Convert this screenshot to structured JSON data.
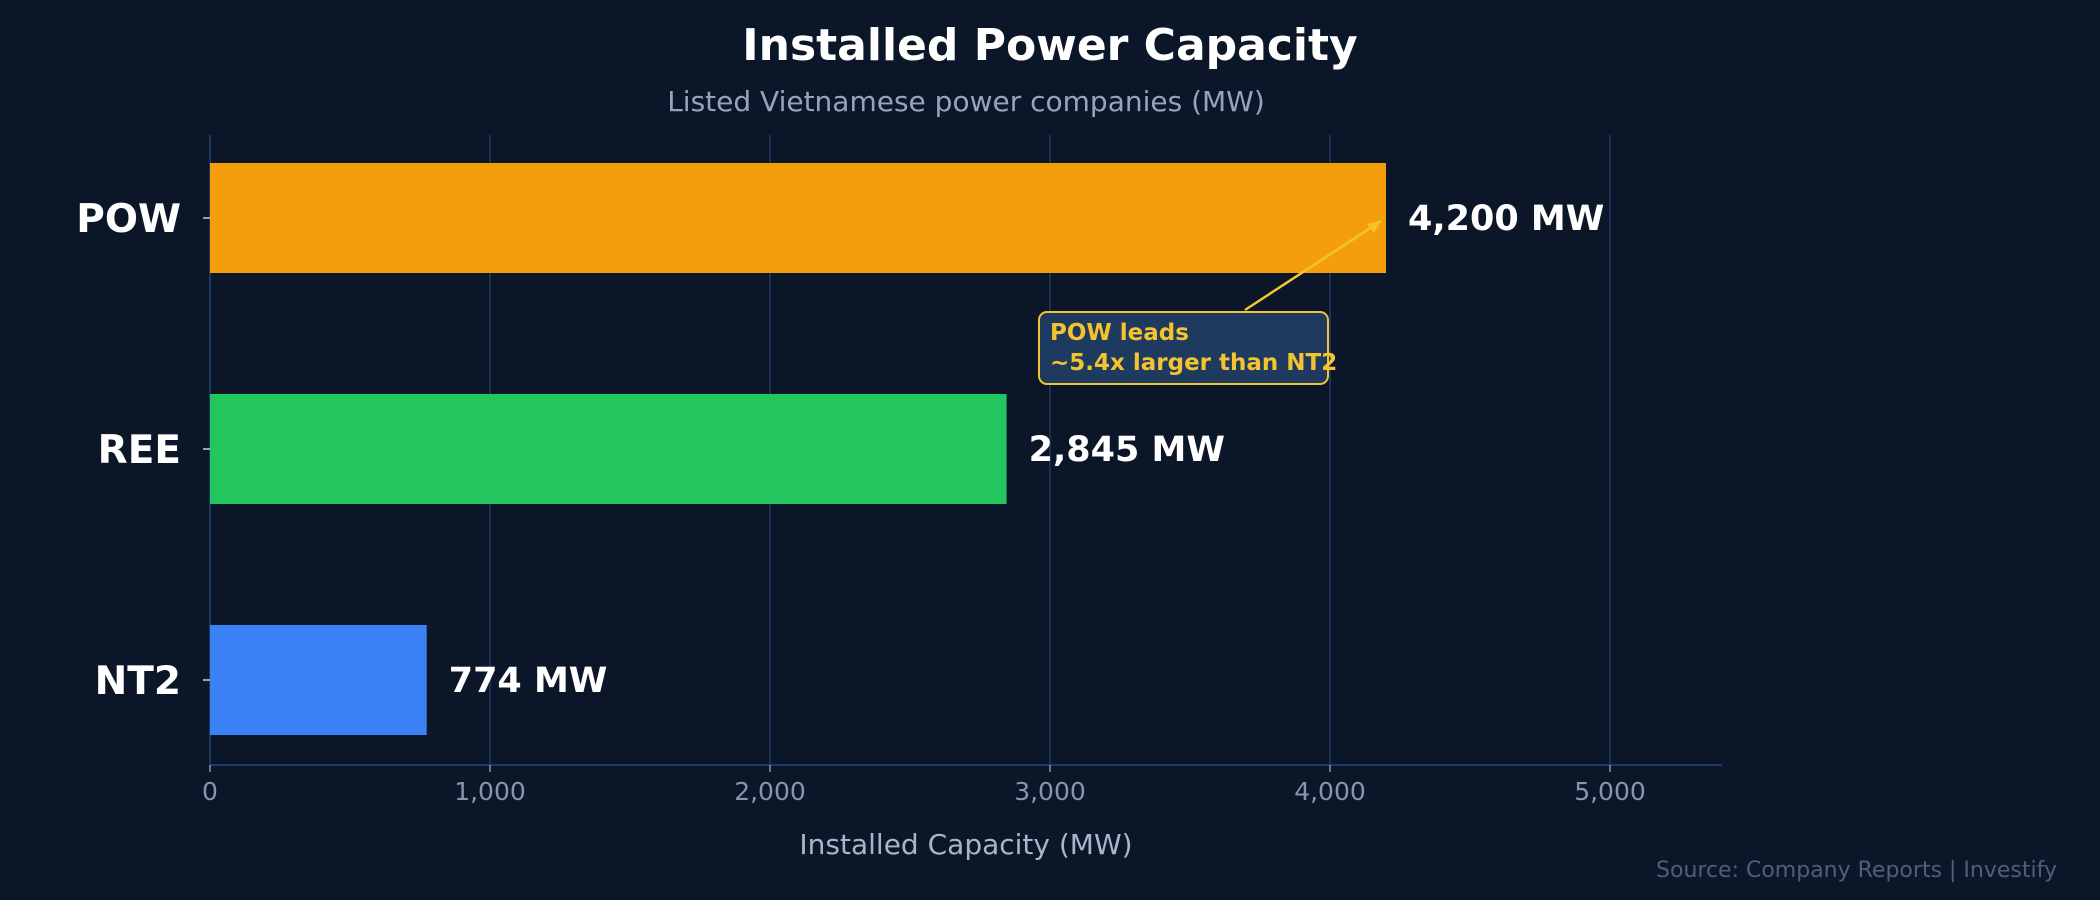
{
  "colors": {
    "background": "#0b1628",
    "grid": "#1f3a66",
    "title": "#ffffff",
    "subtitle": "#93a4bd",
    "tick": "#8796ad",
    "axis_label": "#a8b6c9",
    "source": "#4f5f78",
    "annotation": "#f4c430",
    "annotation_box": "#1f3a5f"
  },
  "chart_data": {
    "type": "bar",
    "orientation": "horizontal",
    "title": "Installed Power Capacity",
    "subtitle": "Listed Vietnamese power companies (MW)",
    "xlabel": "Installed Capacity (MW)",
    "ylabel": "",
    "xlim": [
      0,
      5400
    ],
    "xticks": [
      0,
      1000,
      2000,
      3000,
      4000,
      5000
    ],
    "xtick_labels": [
      "0",
      "1,000",
      "2,000",
      "3,000",
      "4,000",
      "5,000"
    ],
    "grid": true,
    "categories": [
      "POW",
      "REE",
      "NT2"
    ],
    "values": [
      4200,
      2845,
      774
    ],
    "bar_colors": [
      "#f59e0b",
      "#22c55e",
      "#3b82f6"
    ],
    "data_labels": [
      "4,200 MW",
      "2,845 MW",
      "774 MW"
    ],
    "annotation": {
      "lines": [
        "POW leads",
        "~5.4x larger than NT2"
      ],
      "points_to": "POW"
    },
    "source": "Source: Company Reports | Investify"
  }
}
